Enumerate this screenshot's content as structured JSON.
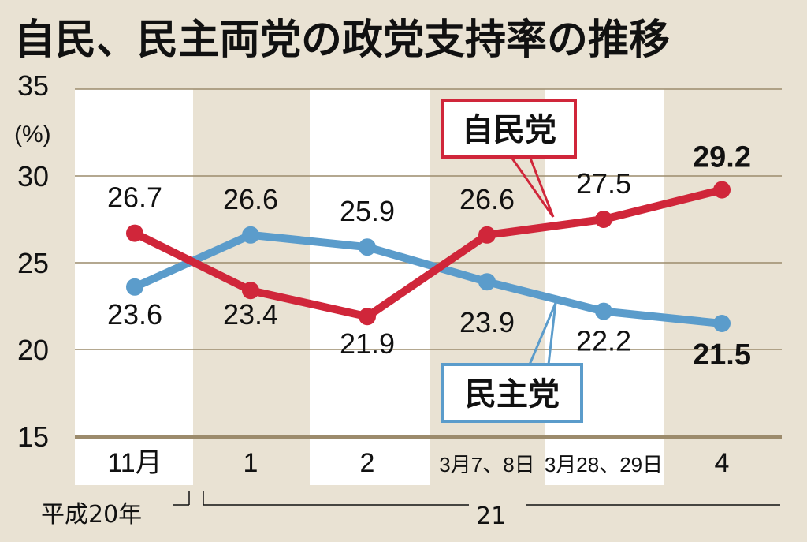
{
  "chart_data": {
    "type": "line",
    "title": "自民、民主両党の政党支持率の推移",
    "y_unit": "(%)",
    "ylim": [
      15,
      35
    ],
    "yticks": [
      "15",
      "20",
      "25",
      "30",
      "35"
    ],
    "categories": [
      "11月",
      "1",
      "2",
      "3月7、8日",
      "3月28、29日",
      "4"
    ],
    "era_labels": [
      "平成20年",
      "21"
    ],
    "grid": "horizontal",
    "series": [
      {
        "name": "自民党",
        "color": "#d0263a",
        "values": [
          26.7,
          23.4,
          21.9,
          26.6,
          27.5,
          29.2
        ],
        "labels": [
          "26.7",
          "23.4",
          "21.9",
          "26.6",
          "27.5",
          "29.2"
        ]
      },
      {
        "name": "民主党",
        "color": "#5b9ccb",
        "values": [
          23.6,
          26.6,
          25.9,
          23.9,
          22.2,
          21.5
        ],
        "labels": [
          "23.6",
          "26.6",
          "25.9",
          "23.9",
          "22.2",
          "21.5"
        ]
      }
    ]
  }
}
